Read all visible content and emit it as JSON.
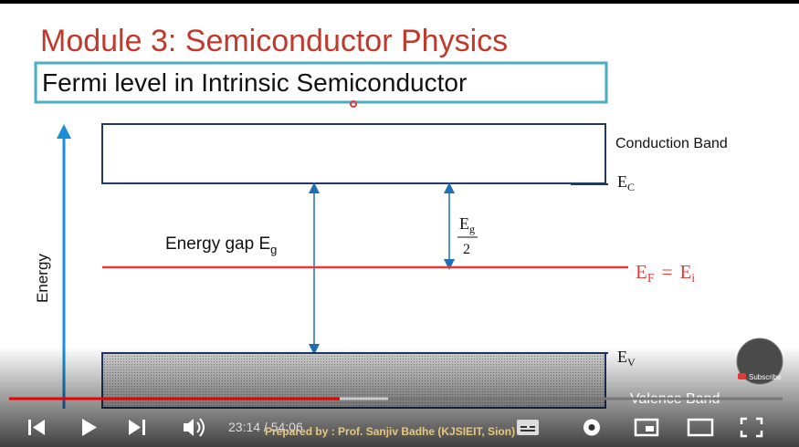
{
  "player": {
    "slide": {
      "title": "Module 3: Semiconductor Physics",
      "heading": "Fermi level in Intrinsic Semiconductor",
      "axis_label": "Energy",
      "conduction_band": "Conduction Band",
      "valence_band": "Valence Band",
      "ec": {
        "symbol": "E",
        "sub": "C"
      },
      "ev": {
        "symbol": "E",
        "sub": "V"
      },
      "energy_gap": {
        "text": "Energy gap E",
        "sub": "g"
      },
      "half_gap": {
        "numerator": "E",
        "numerator_sub": "g",
        "denominator": "2"
      },
      "fermi": {
        "left": "E",
        "left_sub": "F",
        "equals": "=",
        "right": "E",
        "right_sub": "i"
      },
      "footer": "Prepared by : Prof. Sanjiv Badhe (KJSIEIT, Sion)"
    },
    "time": "23:14 / 54:06",
    "subscribe": "Subscribe"
  }
}
